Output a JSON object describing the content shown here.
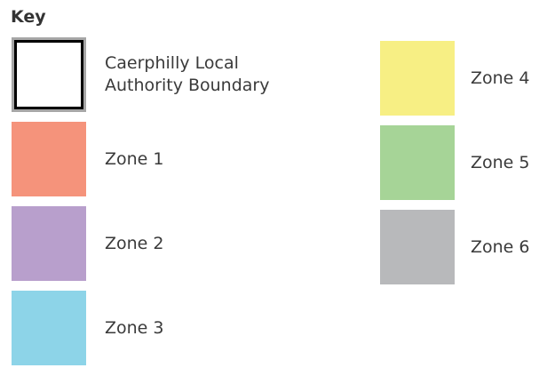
{
  "key": {
    "title": "Key",
    "columns": [
      [
        {
          "label": "Caerphilly Local Authority Boundary",
          "fill": "#ffffff",
          "border": "#000000",
          "outline": "#a6a6a6"
        },
        {
          "label": "Zone 1",
          "fill": "#f5937b"
        },
        {
          "label": "Zone 2",
          "fill": "#b89fcc"
        },
        {
          "label": "Zone 3",
          "fill": "#8dd4e8"
        }
      ],
      [
        {
          "label": "Zone 4",
          "fill": "#f7ef84"
        },
        {
          "label": "Zone 5",
          "fill": "#a6d497"
        },
        {
          "label": "Zone 6",
          "fill": "#b8b9bb"
        }
      ]
    ]
  }
}
